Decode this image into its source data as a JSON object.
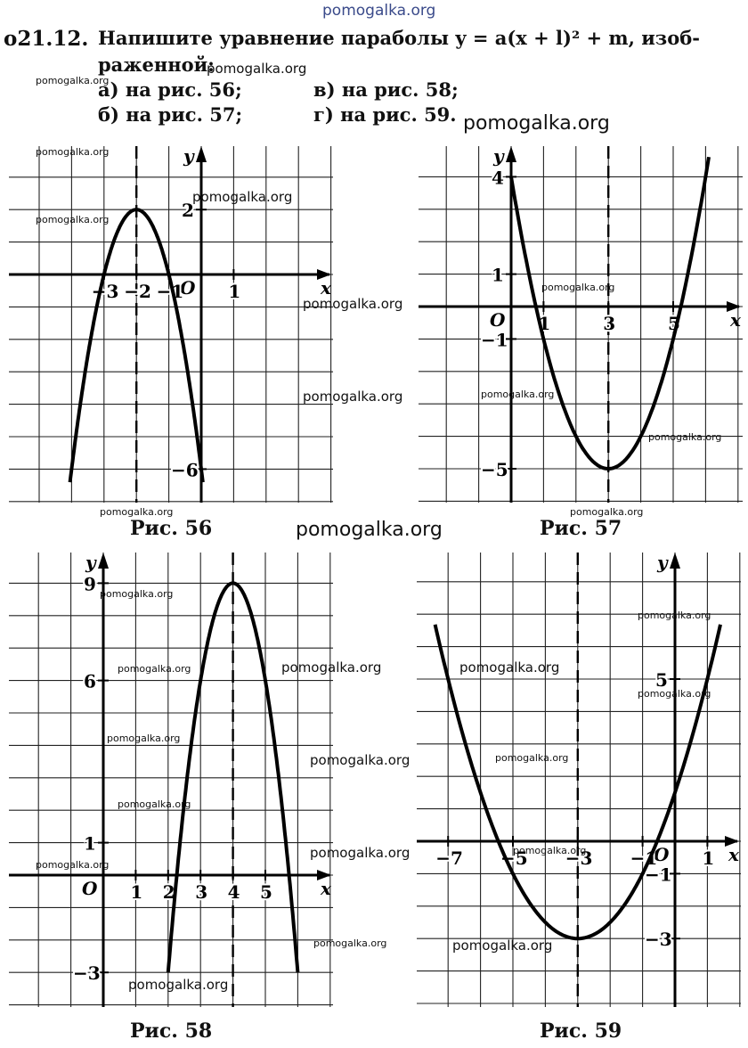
{
  "site_top": "pomogalka.org",
  "problem": {
    "number": "о21.12.",
    "line1": "Напишите уравнение параболы y = a(x + l)² + m, изоб-",
    "line2": "раженной:",
    "a": "а) на рис. 56;",
    "b": "б) на рис. 57;",
    "c": "в) на рис. 58;",
    "d": "г) на рис. 59."
  },
  "watermark": "pomogalka.org",
  "figures": [
    {
      "caption": "Рис. 56",
      "axis_x": "x",
      "axis_y": "y",
      "origin": "O",
      "tick_labels": [
        "−3",
        "−2",
        "−1",
        "1",
        "2",
        "−6"
      ],
      "chart_data": {
        "type": "line",
        "equation": "y = -2(x + 2)^2 + 2",
        "vertex": [
          -2,
          2
        ],
        "axis_of_symmetry": -2,
        "points": [
          [
            -3,
            0
          ],
          [
            -2,
            2
          ],
          [
            -1,
            0
          ],
          [
            0,
            -6
          ]
        ]
      }
    },
    {
      "caption": "Рис. 57",
      "axis_x": "x",
      "axis_y": "y",
      "origin": "O",
      "tick_labels": [
        "4",
        "1",
        "−1",
        "−5",
        "1",
        "3",
        "5"
      ],
      "chart_data": {
        "type": "line",
        "equation": "y = (x - 3)^2 - 5",
        "vertex": [
          3,
          -5
        ],
        "axis_of_symmetry": 3,
        "points": [
          [
            0,
            4
          ],
          [
            1,
            -1
          ],
          [
            3,
            -5
          ],
          [
            5,
            -1
          ]
        ]
      }
    },
    {
      "caption": "Рис. 58",
      "axis_x": "x",
      "axis_y": "y",
      "origin": "O",
      "tick_labels": [
        "9",
        "6",
        "1",
        "−3",
        "1",
        "2",
        "3",
        "4",
        "5"
      ],
      "chart_data": {
        "type": "line",
        "equation": "y = -3(x - 4)^2 + 9",
        "vertex": [
          4,
          9
        ],
        "axis_of_symmetry": 4,
        "points": [
          [
            2,
            -3
          ],
          [
            3,
            6
          ],
          [
            4,
            9
          ],
          [
            5,
            6
          ]
        ]
      }
    },
    {
      "caption": "Рис. 59",
      "axis_x": "x",
      "axis_y": "y",
      "origin": "O",
      "tick_labels": [
        "−7",
        "−5",
        "−3",
        "−1",
        "1",
        "5",
        "−1",
        "−3"
      ],
      "chart_data": {
        "type": "line",
        "equation": "y = 0.5(x + 3)^2 - 3",
        "vertex": [
          -3,
          -3
        ],
        "axis_of_symmetry": -3,
        "points": [
          [
            -7,
            5
          ],
          [
            -5,
            -1
          ],
          [
            -3,
            -3
          ],
          [
            -1,
            -1
          ],
          [
            1,
            5
          ]
        ]
      }
    }
  ]
}
